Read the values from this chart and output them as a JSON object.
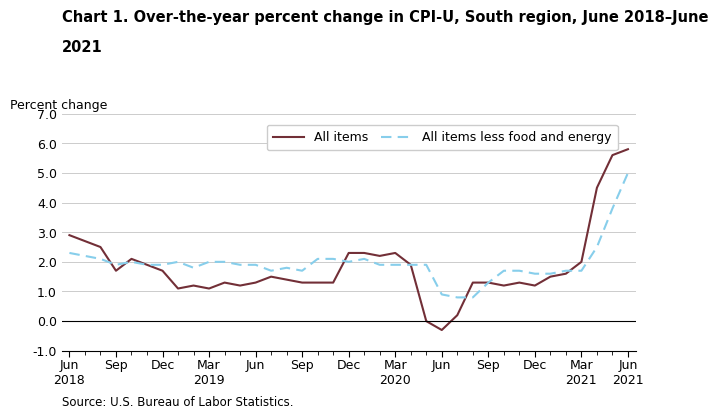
{
  "title_line1": "Chart 1. Over-the-year percent change in CPI-U, South region, June 2018–June",
  "title_line2": "2021",
  "ylabel": "Percent change",
  "source": "Source: U.S. Bureau of Labor Statistics.",
  "ylim": [
    -1.0,
    7.0
  ],
  "yticks": [
    -1.0,
    0.0,
    1.0,
    2.0,
    3.0,
    4.0,
    5.0,
    6.0,
    7.0
  ],
  "all_items_color": "#722F37",
  "core_items_color": "#87CEEB",
  "all_items_label": "All items",
  "core_items_label": "All items less food and energy",
  "title_fontsize": 10.5,
  "axis_fontsize": 9,
  "legend_fontsize": 9,
  "all_items_monthly": [
    2.9,
    2.7,
    2.5,
    1.7,
    2.1,
    1.9,
    1.7,
    1.1,
    1.2,
    1.1,
    1.3,
    1.2,
    1.3,
    1.5,
    1.4,
    1.3,
    1.3,
    1.3,
    2.3,
    2.3,
    2.2,
    2.3,
    1.9,
    0.0,
    -0.3,
    0.2,
    1.3,
    1.3,
    1.2,
    1.3,
    1.2,
    1.5,
    1.6,
    2.0,
    4.5,
    5.6,
    5.8
  ],
  "core_items_monthly": [
    2.3,
    2.2,
    2.1,
    1.9,
    2.0,
    1.9,
    1.9,
    2.0,
    1.8,
    2.0,
    2.0,
    1.9,
    1.9,
    1.7,
    1.8,
    1.7,
    2.1,
    2.1,
    2.0,
    2.1,
    1.9,
    1.9,
    1.9,
    1.9,
    0.9,
    0.8,
    0.8,
    1.3,
    1.7,
    1.7,
    1.6,
    1.6,
    1.7,
    1.7,
    2.5,
    3.8,
    5.0
  ]
}
